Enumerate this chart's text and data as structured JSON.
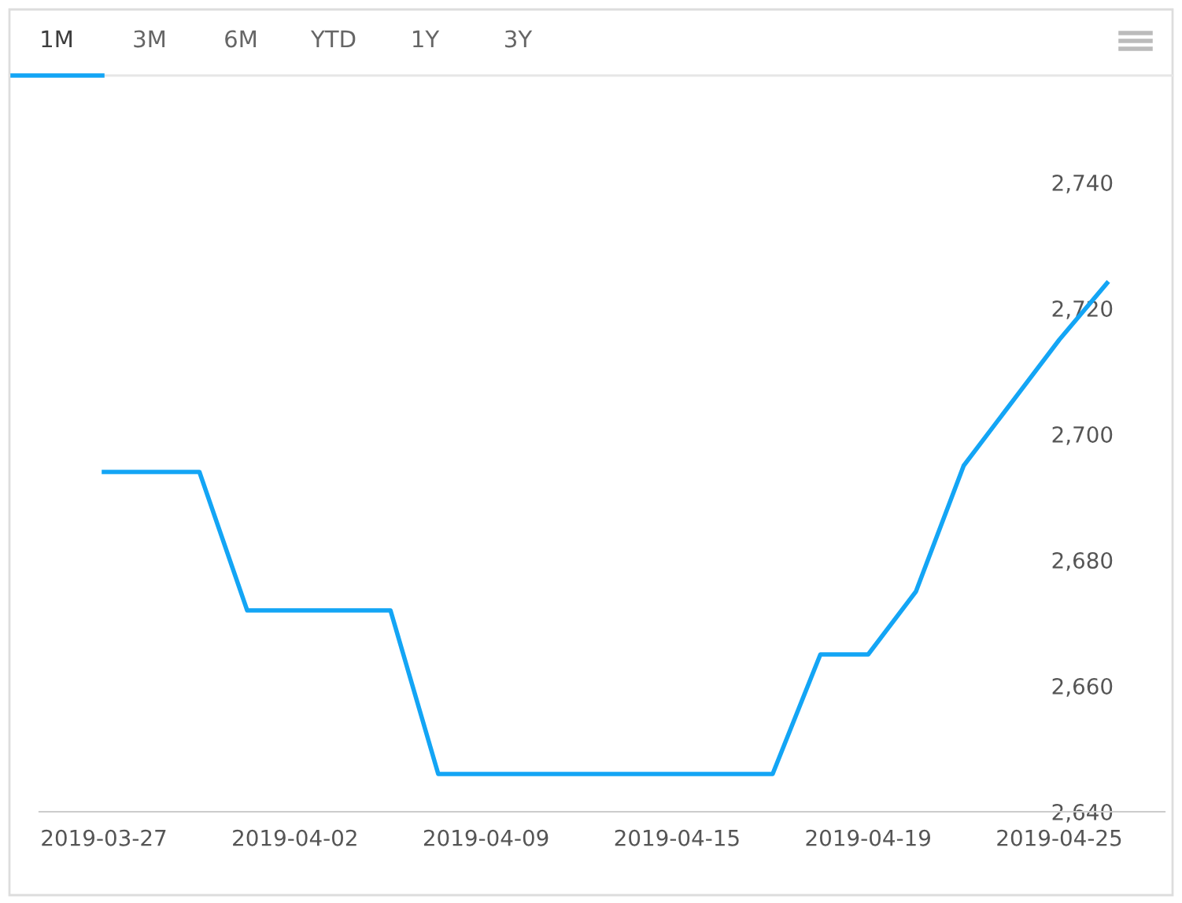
{
  "chart_data": {
    "type": "line",
    "categories": [
      "2019-03-27",
      null,
      null,
      null,
      "2019-04-02",
      null,
      null,
      null,
      "2019-04-09",
      null,
      null,
      null,
      "2019-04-15",
      null,
      null,
      null,
      "2019-04-19",
      null,
      null,
      null,
      "2019-04-25",
      null
    ],
    "series": [
      {
        "color": "#13a5f5",
        "values": [
          2694,
          2694,
          2694,
          2672,
          2672,
          2672,
          2672,
          2646,
          2646,
          2646,
          2646,
          2646,
          2646,
          2646,
          2646,
          2665,
          2665,
          2675,
          2695,
          2705,
          2715,
          2724
        ]
      }
    ],
    "ylim": [
      2640,
      2740
    ],
    "yticks": [
      {
        "value": 2640,
        "label": "2,640"
      },
      {
        "value": 2660,
        "label": "2,660"
      },
      {
        "value": 2680,
        "label": "2,680"
      },
      {
        "value": 2700,
        "label": "2,700"
      },
      {
        "value": 2720,
        "label": "2,720"
      },
      {
        "value": 2740,
        "label": "2,740"
      }
    ],
    "grid": false,
    "legend": false,
    "marker": "none",
    "line_style": "solid",
    "annotations": [
      "1M",
      "3M",
      "6M",
      "YTD",
      "1Y",
      "3Y"
    ]
  }
}
